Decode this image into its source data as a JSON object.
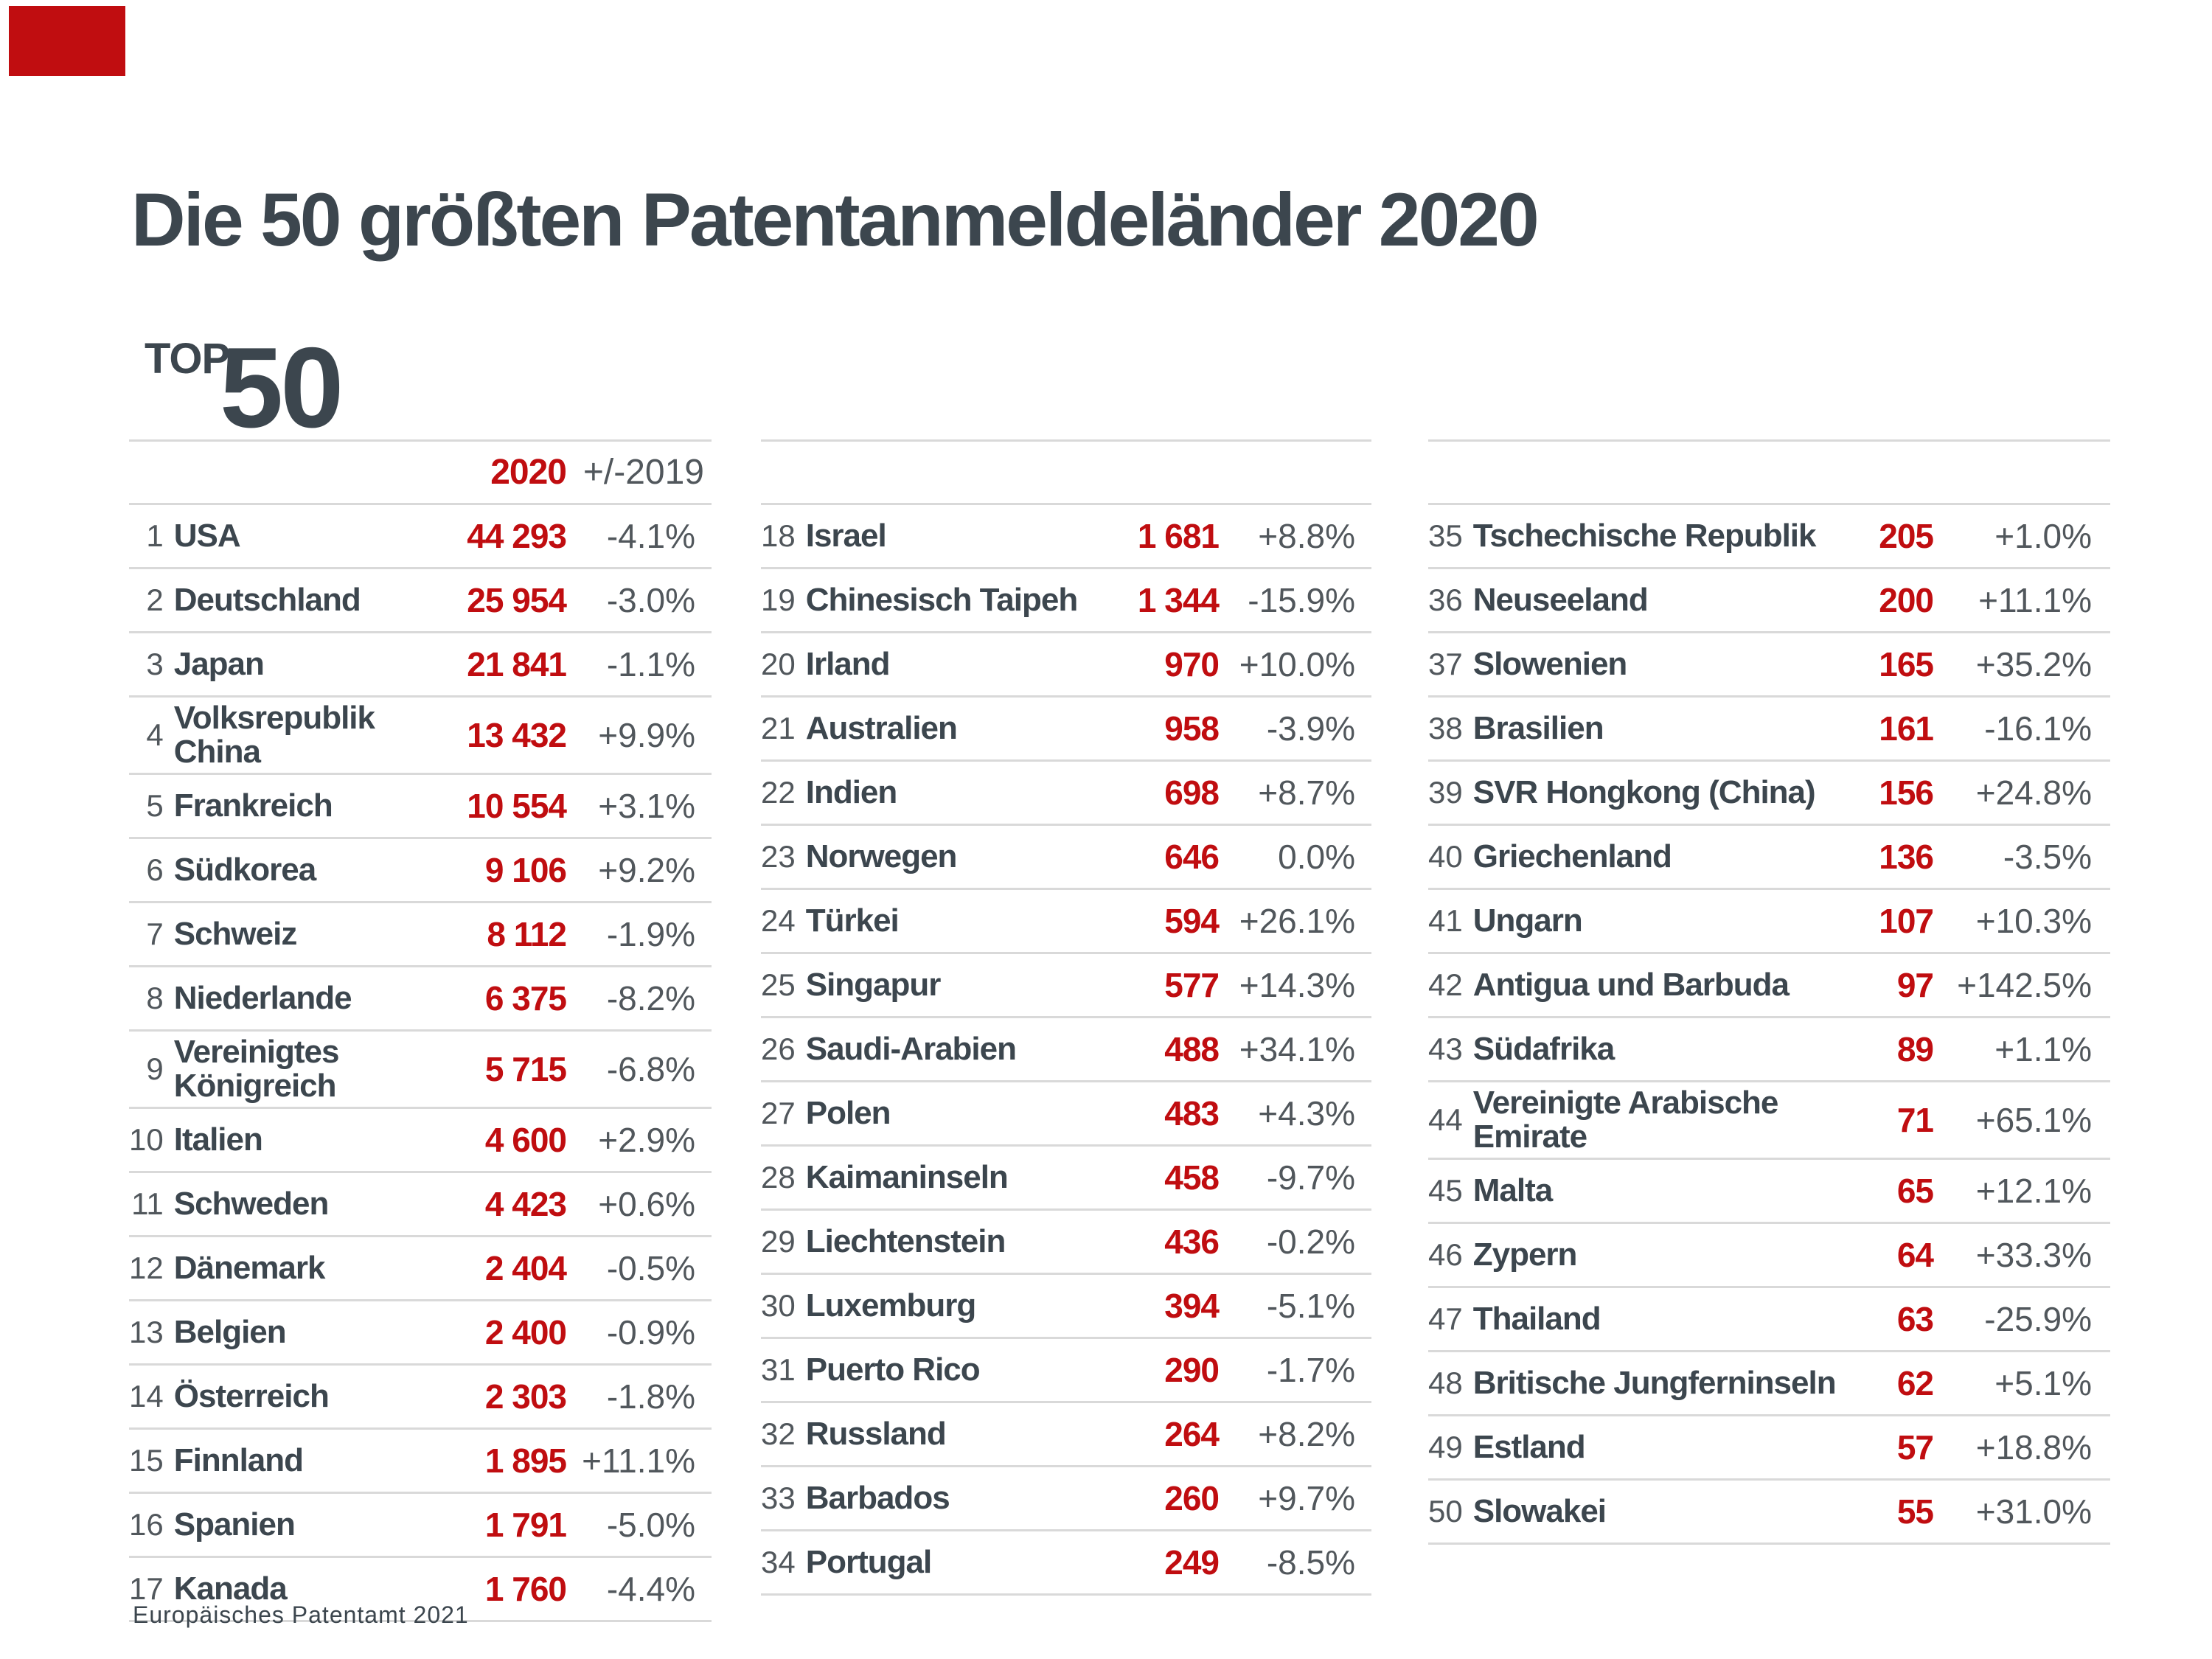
{
  "page": {
    "title": "Die 50 größten Patentanmeldeländer 2020",
    "top_label": "TOP",
    "top_number": "50",
    "source": "Europäisches Patentamt 2021"
  },
  "colors": {
    "accent_red": "#C00D10",
    "dark_slate": "#3C464E",
    "text_gray": "#51575C",
    "line_gray": "#D9D9D9"
  },
  "header": {
    "year": "2020",
    "change": "+/-2019"
  },
  "columns": [
    {
      "has_header_labels": true,
      "rows": [
        {
          "rank": "1",
          "country": "USA",
          "value": "44 293",
          "change": "-4.1%"
        },
        {
          "rank": "2",
          "country": "Deutschland",
          "value": "25 954",
          "change": "-3.0%"
        },
        {
          "rank": "3",
          "country": "Japan",
          "value": "21 841",
          "change": "-1.1%"
        },
        {
          "rank": "4",
          "country": "Volksrepublik\nChina",
          "value": "13 432",
          "change": "+9.9%"
        },
        {
          "rank": "5",
          "country": "Frankreich",
          "value": "10 554",
          "change": "+3.1%"
        },
        {
          "rank": "6",
          "country": "Südkorea",
          "value": "9 106",
          "change": "+9.2%"
        },
        {
          "rank": "7",
          "country": "Schweiz",
          "value": "8 112",
          "change": "-1.9%"
        },
        {
          "rank": "8",
          "country": "Niederlande",
          "value": "6 375",
          "change": "-8.2%"
        },
        {
          "rank": "9",
          "country": "Vereinigtes\nKönigreich",
          "value": "5 715",
          "change": "-6.8%"
        },
        {
          "rank": "10",
          "country": "Italien",
          "value": "4 600",
          "change": "+2.9%"
        },
        {
          "rank": "11",
          "country": "Schweden",
          "value": "4 423",
          "change": "+0.6%"
        },
        {
          "rank": "12",
          "country": "Dänemark",
          "value": "2 404",
          "change": "-0.5%"
        },
        {
          "rank": "13",
          "country": "Belgien",
          "value": "2 400",
          "change": "-0.9%"
        },
        {
          "rank": "14",
          "country": "Österreich",
          "value": "2 303",
          "change": "-1.8%"
        },
        {
          "rank": "15",
          "country": "Finnland",
          "value": "1 895",
          "change": "+11.1%"
        },
        {
          "rank": "16",
          "country": "Spanien",
          "value": "1 791",
          "change": "-5.0%"
        },
        {
          "rank": "17",
          "country": "Kanada",
          "value": "1 760",
          "change": "-4.4%"
        }
      ]
    },
    {
      "has_header_labels": false,
      "rows": [
        {
          "rank": "18",
          "country": "Israel",
          "value": "1 681",
          "change": "+8.8%"
        },
        {
          "rank": "19",
          "country": "Chinesisch Taipeh",
          "value": "1 344",
          "change": "-15.9%"
        },
        {
          "rank": "20",
          "country": "Irland",
          "value": "970",
          "change": "+10.0%"
        },
        {
          "rank": "21",
          "country": "Australien",
          "value": "958",
          "change": "-3.9%"
        },
        {
          "rank": "22",
          "country": "Indien",
          "value": "698",
          "change": "+8.7%"
        },
        {
          "rank": "23",
          "country": "Norwegen",
          "value": "646",
          "change": "0.0%"
        },
        {
          "rank": "24",
          "country": "Türkei",
          "value": "594",
          "change": "+26.1%"
        },
        {
          "rank": "25",
          "country": "Singapur",
          "value": "577",
          "change": "+14.3%"
        },
        {
          "rank": "26",
          "country": "Saudi-Arabien",
          "value": "488",
          "change": "+34.1%"
        },
        {
          "rank": "27",
          "country": "Polen",
          "value": "483",
          "change": "+4.3%"
        },
        {
          "rank": "28",
          "country": "Kaimaninseln",
          "value": "458",
          "change": "-9.7%"
        },
        {
          "rank": "29",
          "country": "Liechtenstein",
          "value": "436",
          "change": "-0.2%"
        },
        {
          "rank": "30",
          "country": "Luxemburg",
          "value": "394",
          "change": "-5.1%"
        },
        {
          "rank": "31",
          "country": "Puerto Rico",
          "value": "290",
          "change": "-1.7%"
        },
        {
          "rank": "32",
          "country": "Russland",
          "value": "264",
          "change": "+8.2%"
        },
        {
          "rank": "33",
          "country": "Barbados",
          "value": "260",
          "change": "+9.7%"
        },
        {
          "rank": "34",
          "country": "Portugal",
          "value": "249",
          "change": "-8.5%"
        }
      ]
    },
    {
      "has_header_labels": false,
      "rows": [
        {
          "rank": "35",
          "country": "Tschechische Republik",
          "value": "205",
          "change": "+1.0%"
        },
        {
          "rank": "36",
          "country": "Neuseeland",
          "value": "200",
          "change": "+11.1%"
        },
        {
          "rank": "37",
          "country": "Slowenien",
          "value": "165",
          "change": "+35.2%"
        },
        {
          "rank": "38",
          "country": "Brasilien",
          "value": "161",
          "change": "-16.1%"
        },
        {
          "rank": "39",
          "country": "SVR Hongkong (China)",
          "value": "156",
          "change": "+24.8%"
        },
        {
          "rank": "40",
          "country": "Griechenland",
          "value": "136",
          "change": "-3.5%"
        },
        {
          "rank": "41",
          "country": "Ungarn",
          "value": "107",
          "change": "+10.3%"
        },
        {
          "rank": "42",
          "country": "Antigua und Barbuda",
          "value": "97",
          "change": "+142.5%"
        },
        {
          "rank": "43",
          "country": "Südafrika",
          "value": "89",
          "change": "+1.1%"
        },
        {
          "rank": "44",
          "country": "Vereinigte Arabische\nEmirate",
          "value": "71",
          "change": "+65.1%"
        },
        {
          "rank": "45",
          "country": "Malta",
          "value": "65",
          "change": "+12.1%"
        },
        {
          "rank": "46",
          "country": "Zypern",
          "value": "64",
          "change": "+33.3%"
        },
        {
          "rank": "47",
          "country": "Thailand",
          "value": "63",
          "change": "-25.9%"
        },
        {
          "rank": "48",
          "country": "Britische Jungferninseln",
          "value": "62",
          "change": "+5.1%"
        },
        {
          "rank": "49",
          "country": "Estland",
          "value": "57",
          "change": "+18.8%"
        },
        {
          "rank": "50",
          "country": "Slowakei",
          "value": "55",
          "change": "+31.0%"
        }
      ]
    }
  ],
  "chart_data": {
    "type": "table",
    "title": "Die 50 größten Patentanmeldeländer 2020",
    "columns": [
      "Rang",
      "Land",
      "2020",
      "+/-2019"
    ],
    "rows": [
      [
        1,
        "USA",
        44293,
        "-4.1%"
      ],
      [
        2,
        "Deutschland",
        25954,
        "-3.0%"
      ],
      [
        3,
        "Japan",
        21841,
        "-1.1%"
      ],
      [
        4,
        "Volksrepublik China",
        13432,
        "+9.9%"
      ],
      [
        5,
        "Frankreich",
        10554,
        "+3.1%"
      ],
      [
        6,
        "Südkorea",
        9106,
        "+9.2%"
      ],
      [
        7,
        "Schweiz",
        8112,
        "-1.9%"
      ],
      [
        8,
        "Niederlande",
        6375,
        "-8.2%"
      ],
      [
        9,
        "Vereinigtes Königreich",
        5715,
        "-6.8%"
      ],
      [
        10,
        "Italien",
        4600,
        "+2.9%"
      ],
      [
        11,
        "Schweden",
        4423,
        "+0.6%"
      ],
      [
        12,
        "Dänemark",
        2404,
        "-0.5%"
      ],
      [
        13,
        "Belgien",
        2400,
        "-0.9%"
      ],
      [
        14,
        "Österreich",
        2303,
        "-1.8%"
      ],
      [
        15,
        "Finnland",
        1895,
        "+11.1%"
      ],
      [
        16,
        "Spanien",
        1791,
        "-5.0%"
      ],
      [
        17,
        "Kanada",
        1760,
        "-4.4%"
      ],
      [
        18,
        "Israel",
        1681,
        "+8.8%"
      ],
      [
        19,
        "Chinesisch Taipeh",
        1344,
        "-15.9%"
      ],
      [
        20,
        "Irland",
        970,
        "+10.0%"
      ],
      [
        21,
        "Australien",
        958,
        "-3.9%"
      ],
      [
        22,
        "Indien",
        698,
        "+8.7%"
      ],
      [
        23,
        "Norwegen",
        646,
        "0.0%"
      ],
      [
        24,
        "Türkei",
        594,
        "+26.1%"
      ],
      [
        25,
        "Singapur",
        577,
        "+14.3%"
      ],
      [
        26,
        "Saudi-Arabien",
        488,
        "+34.1%"
      ],
      [
        27,
        "Polen",
        483,
        "+4.3%"
      ],
      [
        28,
        "Kaimaninseln",
        458,
        "-9.7%"
      ],
      [
        29,
        "Liechtenstein",
        436,
        "-0.2%"
      ],
      [
        30,
        "Luxemburg",
        394,
        "-5.1%"
      ],
      [
        31,
        "Puerto Rico",
        290,
        "-1.7%"
      ],
      [
        32,
        "Russland",
        264,
        "+8.2%"
      ],
      [
        33,
        "Barbados",
        260,
        "+9.7%"
      ],
      [
        34,
        "Portugal",
        249,
        "-8.5%"
      ],
      [
        35,
        "Tschechische Republik",
        205,
        "+1.0%"
      ],
      [
        36,
        "Neuseeland",
        200,
        "+11.1%"
      ],
      [
        37,
        "Slowenien",
        165,
        "+35.2%"
      ],
      [
        38,
        "Brasilien",
        161,
        "-16.1%"
      ],
      [
        39,
        "SVR Hongkong (China)",
        156,
        "+24.8%"
      ],
      [
        40,
        "Griechenland",
        136,
        "-3.5%"
      ],
      [
        41,
        "Ungarn",
        107,
        "+10.3%"
      ],
      [
        42,
        "Antigua und Barbuda",
        97,
        "+142.5%"
      ],
      [
        43,
        "Südafrika",
        89,
        "+1.1%"
      ],
      [
        44,
        "Vereinigte Arabische Emirate",
        71,
        "+65.1%"
      ],
      [
        45,
        "Malta",
        65,
        "+12.1%"
      ],
      [
        46,
        "Zypern",
        64,
        "+33.3%"
      ],
      [
        47,
        "Thailand",
        63,
        "-25.9%"
      ],
      [
        48,
        "Britische Jungferninseln",
        62,
        "+5.1%"
      ],
      [
        49,
        "Estland",
        57,
        "+18.8%"
      ],
      [
        50,
        "Slowakei",
        55,
        "+31.0%"
      ]
    ]
  }
}
